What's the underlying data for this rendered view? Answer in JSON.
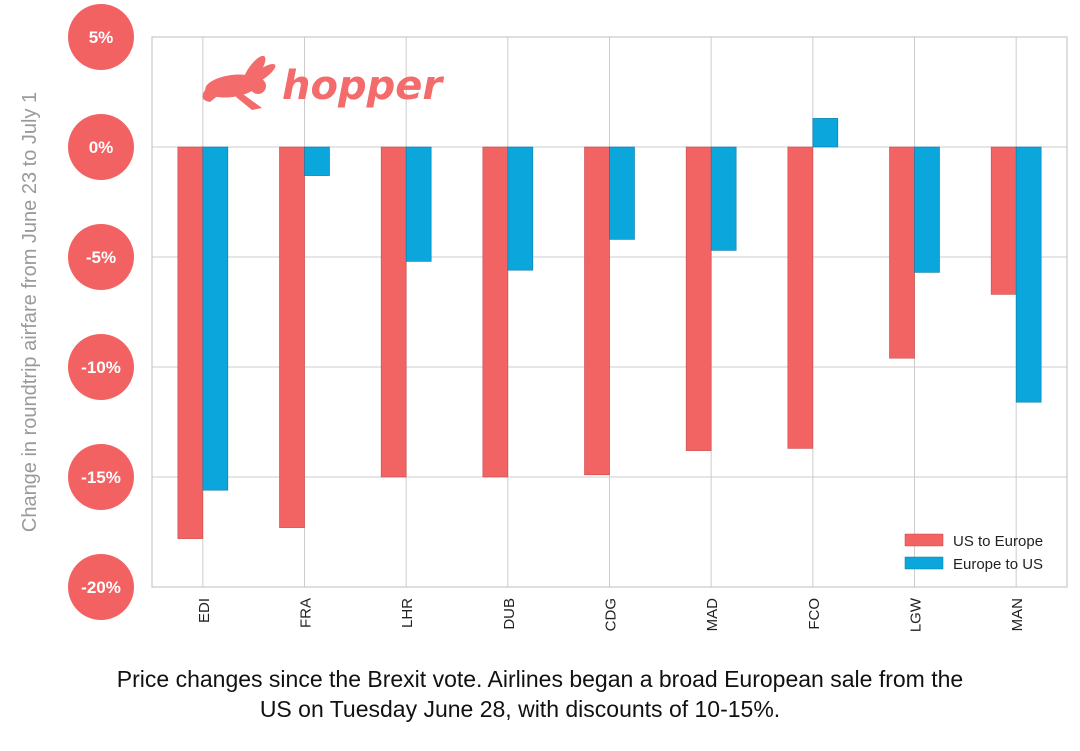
{
  "brand": {
    "name": "hopper",
    "color": "#f36b6b"
  },
  "colors": {
    "us_to_europe": "#f26464",
    "europe_to_us": "#0aa6dc",
    "badge": "#f26262",
    "grid": "#cccccc"
  },
  "chart_data": {
    "type": "bar",
    "title": "",
    "ylabel": "Change in roundtrip airfare from June 23 to July 1",
    "xlabel": "",
    "ylim": [
      -20,
      5
    ],
    "yticks": [
      5,
      0,
      -5,
      -10,
      -15,
      -20
    ],
    "ytick_labels": [
      "5%",
      "0%",
      "-5%",
      "-10%",
      "-15%",
      "-20%"
    ],
    "categories": [
      "EDI",
      "FRA",
      "LHR",
      "DUB",
      "CDG",
      "MAD",
      "FCO",
      "LGW",
      "MAN"
    ],
    "series": [
      {
        "name": "US to Europe",
        "values": [
          -17.8,
          -17.3,
          -15.0,
          -15.0,
          -14.9,
          -13.8,
          -13.7,
          -9.6,
          -6.7
        ]
      },
      {
        "name": "Europe to US",
        "values": [
          -15.6,
          -1.3,
          -5.2,
          -5.6,
          -4.2,
          -4.7,
          1.3,
          -5.7,
          -11.6
        ]
      }
    ],
    "legend": "bottom-right",
    "grid": true
  },
  "caption": {
    "line1": "Price changes since the Brexit vote. Airlines began a broad European sale from the",
    "line2": "US on Tuesday June 28, with discounts of 10-15%."
  }
}
